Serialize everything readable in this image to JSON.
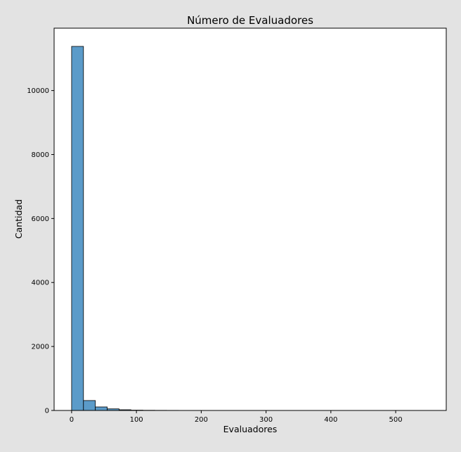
{
  "chart_data": {
    "type": "bar",
    "title": "Número de Evaluadores",
    "xlabel": "Evaluadores",
    "ylabel": "Cantidad",
    "bin_edges": [
      0,
      18.3,
      36.6,
      54.9,
      73.2,
      91.5,
      109.8,
      128.1,
      146.4,
      164.7,
      183.0,
      201.3,
      219.6,
      237.9,
      256.2,
      274.5,
      292.8,
      311.1,
      329.4,
      347.7,
      366.0,
      384.3,
      402.6,
      420.9,
      439.2,
      457.5,
      475.8,
      494.1,
      512.4,
      530.7,
      549.0
    ],
    "values": [
      11380,
      310,
      110,
      50,
      22,
      10,
      6,
      4,
      3,
      2,
      2,
      1,
      1,
      1,
      1,
      1,
      0,
      1,
      0,
      0,
      1,
      0,
      0,
      0,
      1,
      0,
      0,
      0,
      0,
      1
    ],
    "xlim": [
      -27,
      578
    ],
    "ylim": [
      0,
      11950
    ],
    "x_ticks": [
      0,
      100,
      200,
      300,
      400,
      500
    ],
    "y_ticks": [
      0,
      2000,
      4000,
      6000,
      8000,
      10000
    ],
    "bar_color": "#5b9bc9",
    "bar_edge_color": "#000000",
    "grid": false,
    "legend": "none"
  }
}
